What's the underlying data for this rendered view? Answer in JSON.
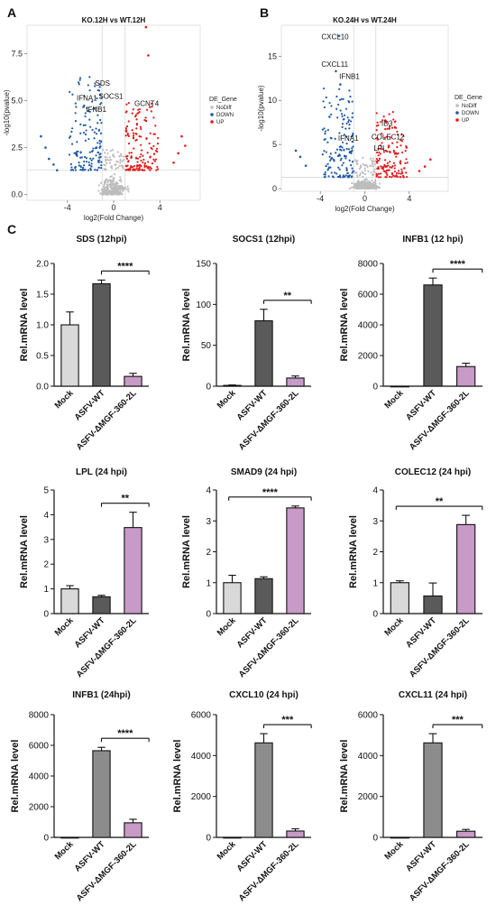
{
  "panel_labels": [
    "A",
    "B",
    "C"
  ],
  "colors": {
    "nodiff": "#bdbdbd",
    "down": "#1f5aa6",
    "up": "#e21b1b",
    "mock": "#d9d9d9",
    "wt_dark": "#5a5a5a",
    "wt_mid": "#8c8c8c",
    "ko": "#c89ac7"
  },
  "chart_data": [
    {
      "type": "scatter",
      "title": "KO.12H vs WT.12H",
      "xlabel": "log2(Fold Change)",
      "ylabel": "-log10(pvalue)",
      "xlim": [
        -7.5,
        7.5
      ],
      "ylim": [
        -0.3,
        9
      ],
      "xticks": [
        -4,
        0,
        4
      ],
      "yticks": [
        0.0,
        2.5,
        5.0,
        7.5
      ],
      "legend": {
        "title": "DE_Gene",
        "items": [
          "NoDiff",
          "DOWN",
          "UP"
        ],
        "position": "right"
      },
      "labels": [
        {
          "text": "SDS",
          "x": -1.6,
          "y": 5.8
        },
        {
          "text": "IFNA1",
          "x": -3.2,
          "y": 5.0
        },
        {
          "text": "SOCS1",
          "x": -1.3,
          "y": 5.1
        },
        {
          "text": "IFNB1",
          "x": -2.4,
          "y": 4.4
        },
        {
          "text": "GCNT4",
          "x": 1.8,
          "y": 4.7
        }
      ],
      "thresholds": {
        "x": [
          -1,
          1
        ],
        "y": 1.3
      },
      "seed": 7,
      "points_down_extreme": [
        [
          -6.3,
          3.1
        ],
        [
          -5.9,
          2.5
        ],
        [
          -5.6,
          1.9
        ],
        [
          -5.2,
          1.6
        ],
        [
          -4.9,
          1.3
        ]
      ],
      "points_up_extreme": [
        [
          2.8,
          8.9
        ],
        [
          3.0,
          7.4
        ],
        [
          5.9,
          3.1
        ],
        [
          6.2,
          2.6
        ],
        [
          5.6,
          2.2
        ],
        [
          5.2,
          1.7
        ]
      ]
    },
    {
      "type": "scatter",
      "title": "KO.24H vs WT.24H",
      "xlabel": "log2(Fold Change)",
      "ylabel": "-log10(pvalue)",
      "xlim": [
        -7.5,
        7.5
      ],
      "ylim": [
        -0.3,
        18.5
      ],
      "xticks": [
        -4,
        0,
        4
      ],
      "yticks": [
        0,
        5,
        10,
        15
      ],
      "legend": {
        "title": "DE_Gene",
        "items": [
          "NoDiff",
          "DOWN",
          "UP"
        ],
        "position": "right"
      },
      "labels": [
        {
          "text": "CXCL10",
          "x": -3.9,
          "y": 16.9
        },
        {
          "text": "CXCL11",
          "x": -3.9,
          "y": 13.8
        },
        {
          "text": "IFNB1",
          "x": -2.3,
          "y": 12.4
        },
        {
          "text": "IFNA1",
          "x": -2.4,
          "y": 5.4
        },
        {
          "text": "ID3",
          "x": 1.5,
          "y": 7.1
        },
        {
          "text": "COLEC12",
          "x": 0.6,
          "y": 5.6
        },
        {
          "text": "LPL",
          "x": 0.8,
          "y": 4.3
        }
      ],
      "thresholds": {
        "x": [
          -1,
          1
        ],
        "y": 1.3
      },
      "seed": 13,
      "points_down_extreme": [
        [
          -2.3,
          17.3
        ],
        [
          -2.6,
          13.3
        ],
        [
          -2.2,
          11.8
        ],
        [
          -6.2,
          4.3
        ],
        [
          -5.8,
          3.6
        ],
        [
          -5.3,
          2.6
        ]
      ],
      "points_up_extreme": [
        [
          1.9,
          7.6
        ],
        [
          2.2,
          6.8
        ],
        [
          5.9,
          3.3
        ],
        [
          5.4,
          2.5
        ],
        [
          4.9,
          2.0
        ]
      ]
    },
    {
      "type": "bar",
      "title": "SDS (12hpi)",
      "ylabel": "Rel.mRNA level",
      "categories": [
        "Mock",
        "ASFV-WT",
        "ASFV-ΔMGF-360-2L"
      ],
      "values": [
        1.0,
        1.67,
        0.16
      ],
      "errors": [
        0.21,
        0.06,
        0.05
      ],
      "ylim": [
        0,
        2.0
      ],
      "yticks": [
        "0.0",
        "0.5",
        "1.0",
        "1.5",
        "2.0"
      ],
      "significance": {
        "from": 1,
        "to": 2,
        "label": "****"
      },
      "bar_colors": [
        "#d9d9d9",
        "#5a5a5a",
        "#c89ac7"
      ]
    },
    {
      "type": "bar",
      "title": "SOCS1 (12hpi)",
      "ylabel": "Rel.mRNA level",
      "categories": [
        "Mock",
        "ASFV-WT",
        "ASFV-ΔMGF-360-2L"
      ],
      "values": [
        1,
        80,
        10
      ],
      "errors": [
        0.5,
        14,
        2.5
      ],
      "ylim": [
        0,
        150
      ],
      "yticks": [
        "0",
        "50",
        "100",
        "150"
      ],
      "significance": {
        "from": 1,
        "to": 2,
        "label": "**"
      },
      "bar_colors": [
        "#d9d9d9",
        "#5a5a5a",
        "#c89ac7"
      ]
    },
    {
      "type": "bar",
      "title": "INFB1 (12 hpi)",
      "ylabel": "Rel.mRNA level",
      "categories": [
        "Mock",
        "ASFV-WT",
        "ASFV-ΔMGF-360-2L"
      ],
      "values": [
        1,
        6600,
        1280
      ],
      "errors": [
        0,
        450,
        220
      ],
      "ylim": [
        0,
        8000
      ],
      "yticks": [
        "0",
        "2000",
        "4000",
        "6000",
        "8000"
      ],
      "significance": {
        "from": 1,
        "to": 2,
        "label": "****"
      },
      "bar_colors": [
        "#d9d9d9",
        "#5a5a5a",
        "#c89ac7"
      ]
    },
    {
      "type": "bar",
      "title": "LPL (24 hpi)",
      "ylabel": "Rel.mRNA level",
      "categories": [
        "Mock",
        "ASFV-WT",
        "ASFV-ΔMGF-360-2L"
      ],
      "values": [
        1.0,
        0.68,
        3.48
      ],
      "errors": [
        0.13,
        0.06,
        0.62
      ],
      "ylim": [
        0,
        5
      ],
      "yticks": [
        "0",
        "1",
        "2",
        "3",
        "4",
        "5"
      ],
      "significance": {
        "from": 1,
        "to": 2,
        "label": "**"
      },
      "bar_colors": [
        "#d9d9d9",
        "#5a5a5a",
        "#c89ac7"
      ]
    },
    {
      "type": "bar",
      "title": "SMAD9 (24 hpi)",
      "ylabel": "Rel.mRNA level",
      "categories": [
        "Mock",
        "ASFV-WT",
        "ASFV-ΔMGF-360-2L"
      ],
      "values": [
        1.0,
        1.13,
        3.42
      ],
      "errors": [
        0.24,
        0.06,
        0.06
      ],
      "ylim": [
        0,
        4
      ],
      "yticks": [
        "0",
        "1",
        "2",
        "3",
        "4"
      ],
      "significance": {
        "from": 0,
        "to": 2,
        "label": "****"
      },
      "bar_colors": [
        "#d9d9d9",
        "#5a5a5a",
        "#c89ac7"
      ]
    },
    {
      "type": "bar",
      "title": "COLEC12 (24 hpi)",
      "ylabel": "Rel.mRNA level",
      "categories": [
        "Mock",
        "ASFV-WT",
        "ASFV-ΔMGF-360-2L"
      ],
      "values": [
        1.0,
        0.57,
        2.88
      ],
      "errors": [
        0.06,
        0.42,
        0.3
      ],
      "ylim": [
        0,
        4
      ],
      "yticks": [
        "0",
        "1",
        "2",
        "3",
        "4"
      ],
      "significance": {
        "from": 0,
        "to": 2,
        "label": "**"
      },
      "bar_colors": [
        "#d9d9d9",
        "#5a5a5a",
        "#c89ac7"
      ]
    },
    {
      "type": "bar",
      "title": "INFB1 (24hpi)",
      "ylabel": "Rel.mRNA level",
      "categories": [
        "Mock",
        "ASFV-WT",
        "ASFV-ΔMGF-360-2L"
      ],
      "values": [
        1,
        5650,
        950
      ],
      "errors": [
        0,
        220,
        230
      ],
      "ylim": [
        0,
        8000
      ],
      "yticks": [
        "0",
        "2000",
        "4000",
        "6000",
        "8000"
      ],
      "significance": {
        "from": 1,
        "to": 2,
        "label": "****"
      },
      "bar_colors": [
        "#d9d9d9",
        "#8c8c8c",
        "#c89ac7"
      ]
    },
    {
      "type": "bar",
      "title": "CXCL10 (24 hpi)",
      "ylabel": "Rel.mRNA level",
      "categories": [
        "Mock",
        "ASFV-WT",
        "ASFV-ΔMGF-360-2L"
      ],
      "values": [
        1,
        4620,
        310
      ],
      "errors": [
        0,
        450,
        110
      ],
      "ylim": [
        0,
        6000
      ],
      "yticks": [
        "0",
        "2000",
        "4000",
        "6000"
      ],
      "significance": {
        "from": 1,
        "to": 2,
        "label": "***"
      },
      "bar_colors": [
        "#d9d9d9",
        "#8c8c8c",
        "#c89ac7"
      ]
    },
    {
      "type": "bar",
      "title": "CXCL11 (24 hpi)",
      "ylabel": "Rel.mRNA level",
      "categories": [
        "Mock",
        "ASFV-WT",
        "ASFV-ΔMGF-360-2L"
      ],
      "values": [
        1,
        4620,
        300
      ],
      "errors": [
        0,
        450,
        90
      ],
      "ylim": [
        0,
        6000
      ],
      "yticks": [
        "0",
        "2000",
        "4000",
        "6000"
      ],
      "significance": {
        "from": 1,
        "to": 2,
        "label": "***"
      },
      "bar_colors": [
        "#d9d9d9",
        "#8c8c8c",
        "#c89ac7"
      ]
    }
  ]
}
